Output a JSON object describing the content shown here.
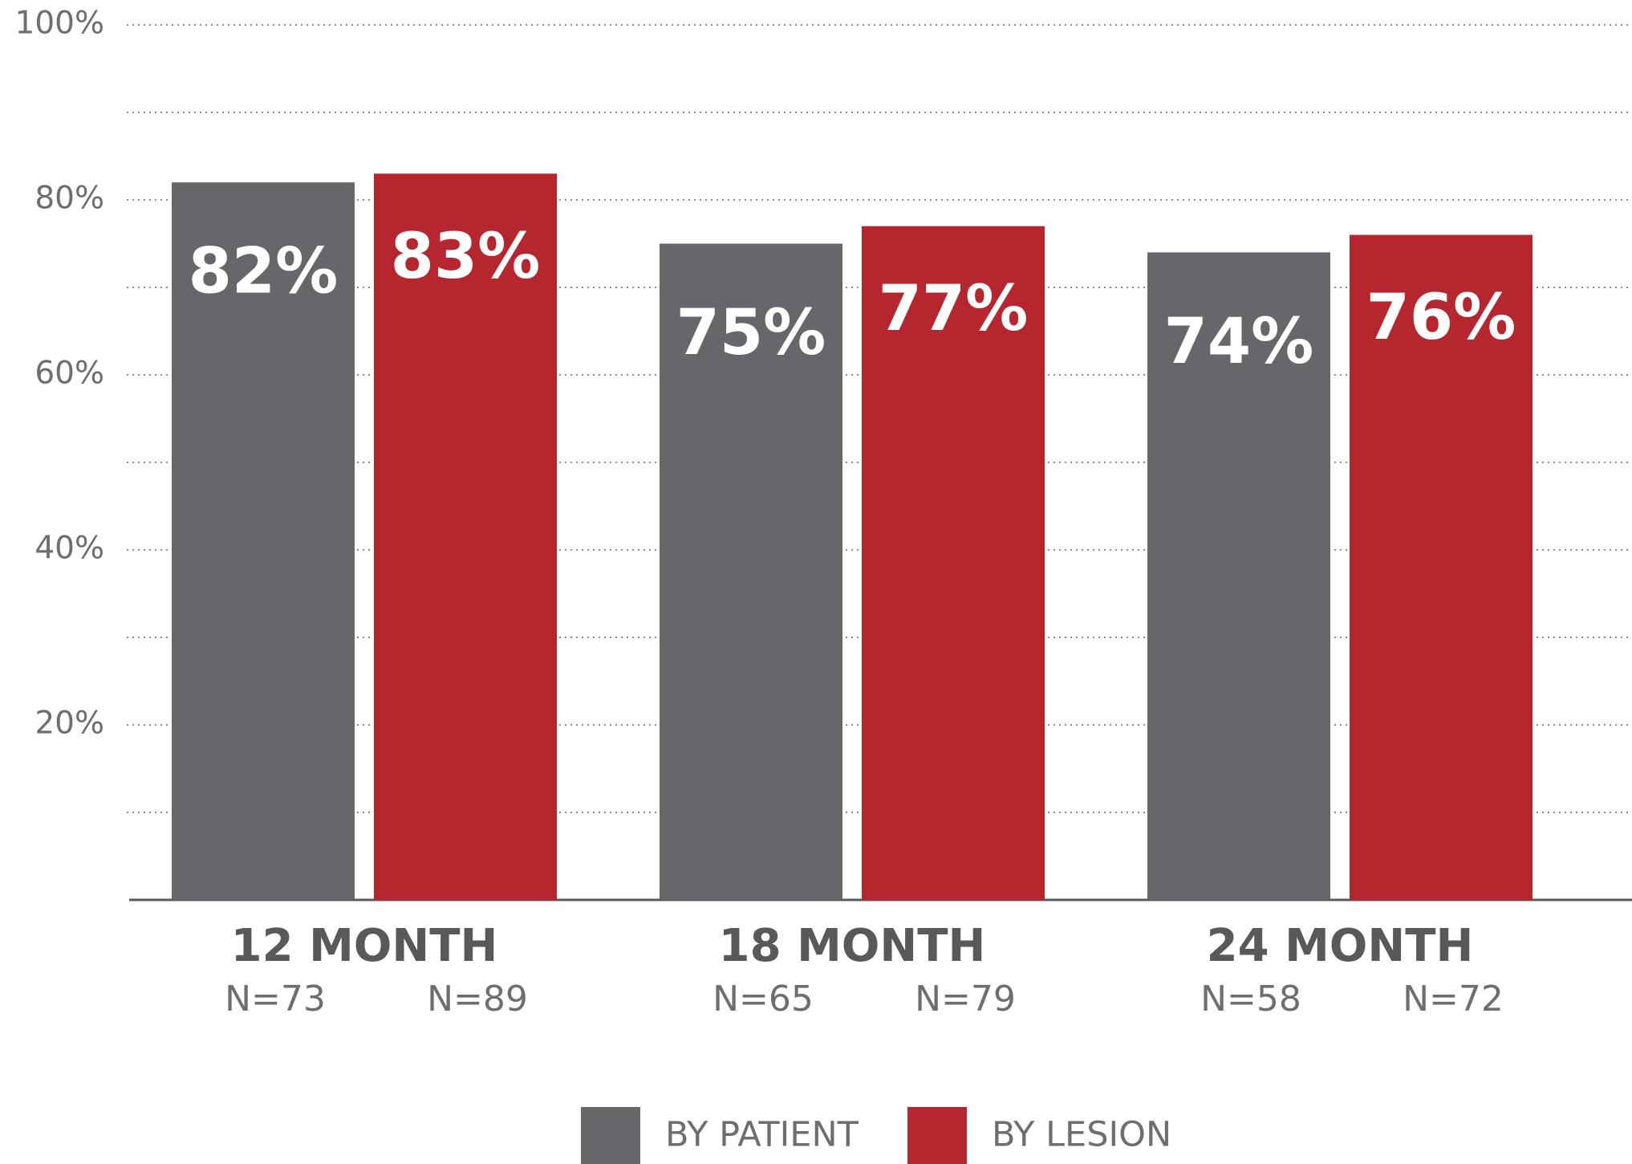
{
  "chart_data": {
    "type": "bar",
    "categories": [
      "12 MONTH",
      "18 MONTH",
      "24 MONTH"
    ],
    "series": [
      {
        "name": "BY PATIENT",
        "color": "#66676b",
        "values": [
          82,
          75,
          74
        ],
        "value_labels": [
          "82%",
          "75%",
          "74%"
        ],
        "n_labels": [
          "N=73",
          "N=65",
          "N=58"
        ]
      },
      {
        "name": "BY LESION",
        "color": "#b5262e",
        "values": [
          83,
          77,
          76
        ],
        "value_labels": [
          "83%",
          "77%",
          "76%"
        ],
        "n_labels": [
          "N=89",
          "N=79",
          "N=72"
        ]
      }
    ],
    "ylim": [
      0,
      100
    ],
    "yticks": [
      {
        "value": 20,
        "label": "20%"
      },
      {
        "value": 40,
        "label": "40%"
      },
      {
        "value": 60,
        "label": "60%"
      },
      {
        "value": 80,
        "label": "80%"
      },
      {
        "value": 100,
        "label": "100%"
      }
    ],
    "minor_yticks": [
      10,
      30,
      50,
      70,
      90
    ],
    "grid": true,
    "legend": "bottom"
  }
}
